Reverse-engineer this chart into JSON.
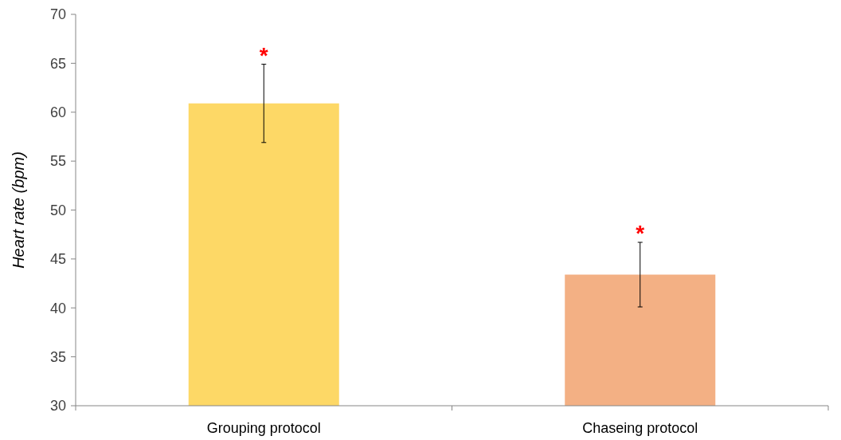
{
  "chart_data": {
    "type": "bar",
    "ylabel": "Heart rate (bpm)",
    "categories": [
      "Grouping protocol",
      "Chaseing protocol"
    ],
    "values": [
      60.9,
      43.4
    ],
    "colors": [
      "#fdd866",
      "#f3b084"
    ],
    "errors": [
      4.0,
      3.3
    ],
    "ylim": [
      30,
      70
    ],
    "yticks": [
      30,
      35,
      40,
      45,
      50,
      55,
      60,
      65,
      70
    ],
    "grid": false,
    "annotations": [
      "*",
      "*"
    ]
  }
}
